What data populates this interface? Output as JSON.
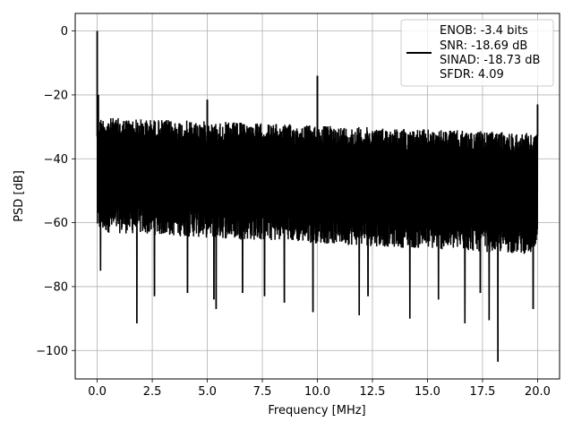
{
  "chart_data": {
    "type": "line",
    "xlabel": "Frequency [MHz]",
    "ylabel": "PSD [dB]",
    "xlim": [
      -1.0,
      21.0
    ],
    "ylim": [
      -108.9,
      5.5
    ],
    "x_ticks": [
      0.0,
      2.5,
      5.0,
      7.5,
      10.0,
      12.5,
      15.0,
      17.5,
      20.0
    ],
    "x_tick_labels": [
      "0.0",
      "2.5",
      "5.0",
      "7.5",
      "10.0",
      "12.5",
      "15.0",
      "17.5",
      "20.0"
    ],
    "y_ticks": [
      0,
      -20,
      -40,
      -60,
      -80,
      -100
    ],
    "y_tick_labels": [
      "0",
      "−20",
      "−40",
      "−60",
      "−80",
      "−100"
    ],
    "grid": true,
    "legend_position": "top-right",
    "legend_text": [
      "ENOB: -3.4 bits",
      "SNR: -18.69 dB",
      "SINAD: -18.73 dB",
      "SFDR: 4.09"
    ],
    "line_color": "#000000",
    "noise_band": {
      "upper_start": -27.0,
      "upper_end": -32.0,
      "lower_start": -63.0,
      "lower_end": -70.0
    },
    "peaks": [
      {
        "x": 0.0,
        "y": 0.0
      },
      {
        "x": 0.05,
        "y": -20.0
      },
      {
        "x": 5.0,
        "y": -21.5
      },
      {
        "x": 10.0,
        "y": -14.0
      },
      {
        "x": 20.0,
        "y": -23.0
      }
    ],
    "dips": [
      {
        "x": 0.15,
        "y": -75.0
      },
      {
        "x": 1.8,
        "y": -91.5
      },
      {
        "x": 2.6,
        "y": -83.0
      },
      {
        "x": 4.1,
        "y": -82.0
      },
      {
        "x": 5.3,
        "y": -84.0
      },
      {
        "x": 5.4,
        "y": -87.0
      },
      {
        "x": 6.6,
        "y": -82.0
      },
      {
        "x": 7.6,
        "y": -83.0
      },
      {
        "x": 8.5,
        "y": -85.0
      },
      {
        "x": 9.8,
        "y": -88.0
      },
      {
        "x": 11.9,
        "y": -89.0
      },
      {
        "x": 12.3,
        "y": -83.0
      },
      {
        "x": 14.2,
        "y": -90.0
      },
      {
        "x": 15.5,
        "y": -84.0
      },
      {
        "x": 16.7,
        "y": -91.5
      },
      {
        "x": 17.4,
        "y": -82.0
      },
      {
        "x": 17.8,
        "y": -90.5
      },
      {
        "x": 18.2,
        "y": -103.5
      },
      {
        "x": 19.8,
        "y": -87.0
      }
    ]
  }
}
